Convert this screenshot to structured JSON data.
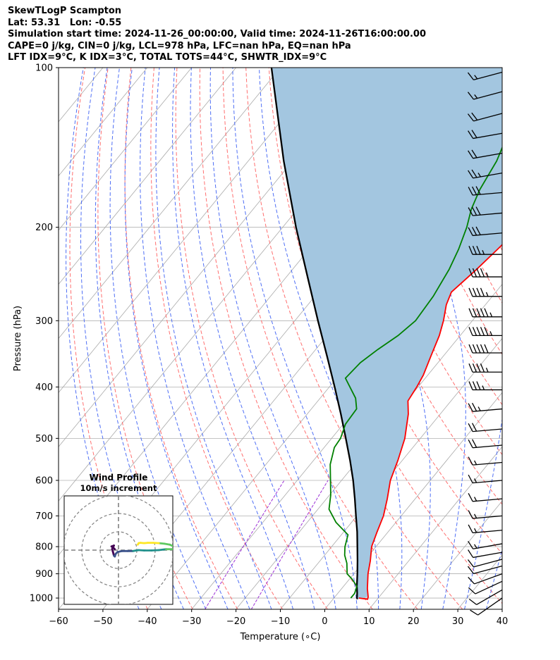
{
  "header": {
    "lines": [
      "SkewTLogP Scampton",
      "Lat: 53.31   Lon: -0.55",
      "Simulation start time: 2024-11-26_00:00:00, Valid time: 2024-11-26T16:00:00.00",
      "CAPE=0 j/kg, CIN=0 j/kg, LCL=978 hPa, LFC=nan hPa, EQ=nan hPa",
      "LFT IDX=9°C, K IDX=3°C, TOTAL TOTS=44°C, SHWTR_IDX=9°C"
    ]
  },
  "chart_data": {
    "type": "line",
    "subtype": "skew-t log-p",
    "xlabel": "Temperature (∘C)",
    "ylabel": "Pressure (hPa)",
    "xlim": [
      -60,
      40
    ],
    "ylim": [
      1050,
      100
    ],
    "y_scale": "log",
    "x_ticks": [
      -60,
      -50,
      -40,
      -30,
      -20,
      -10,
      0,
      10,
      20,
      30,
      40
    ],
    "x_tick_labels": [
      "−60",
      "−50",
      "−40",
      "−30",
      "−20",
      "−10",
      "0",
      "10",
      "20",
      "30",
      "40"
    ],
    "y_ticks": [
      1000,
      900,
      800,
      700,
      600,
      500,
      400,
      300,
      200,
      100
    ],
    "grid": true,
    "colors": {
      "temperature": "#ff0000",
      "dewpoint": "#008000",
      "parcel": "#000000",
      "cin_fill": "#a3c6e0",
      "dry_adiabat": "#ff6f6f",
      "moist_adiabat": "#4f6ff5",
      "mixing_ratio": "#9b30d6",
      "isotherm": "#aaaaaa"
    },
    "series": [
      {
        "key": "temperature",
        "points": [
          [
            1000,
            5.6
          ],
          [
            1005,
            7.8
          ],
          [
            995,
            7.5
          ],
          [
            960,
            5.8
          ],
          [
            900,
            3.2
          ],
          [
            850,
            1.3
          ],
          [
            800,
            -1.0
          ],
          [
            750,
            -2.5
          ],
          [
            700,
            -4.0
          ],
          [
            650,
            -6.3
          ],
          [
            600,
            -9.0
          ],
          [
            550,
            -11.0
          ],
          [
            500,
            -13.5
          ],
          [
            450,
            -17.2
          ],
          [
            425,
            -19.7
          ],
          [
            400,
            -20.3
          ],
          [
            380,
            -21.0
          ],
          [
            350,
            -22.8
          ],
          [
            320,
            -24.7
          ],
          [
            300,
            -26.5
          ],
          [
            280,
            -28.8
          ],
          [
            265,
            -30.0
          ],
          [
            240,
            -28.5
          ],
          [
            220,
            -27.5
          ],
          [
            200,
            -26.5
          ],
          [
            180,
            -28.5
          ],
          [
            165,
            -31.5
          ],
          [
            150,
            -36.5
          ],
          [
            140,
            -39.0
          ],
          [
            130,
            -42.0
          ],
          [
            120,
            -46.5
          ],
          [
            110,
            -51.5
          ],
          [
            100,
            -57.0
          ]
        ]
      },
      {
        "key": "dewpoint",
        "points": [
          [
            1000,
            3.8
          ],
          [
            980,
            3.8
          ],
          [
            950,
            3.0
          ],
          [
            920,
            0.5
          ],
          [
            900,
            -1.5
          ],
          [
            860,
            -3.5
          ],
          [
            830,
            -5.5
          ],
          [
            800,
            -7.0
          ],
          [
            760,
            -8.5
          ],
          [
            720,
            -13.5
          ],
          [
            680,
            -17.5
          ],
          [
            640,
            -19.7
          ],
          [
            600,
            -22.5
          ],
          [
            560,
            -25.5
          ],
          [
            520,
            -27.7
          ],
          [
            500,
            -28.0
          ],
          [
            470,
            -29.5
          ],
          [
            440,
            -29.8
          ],
          [
            420,
            -32.0
          ],
          [
            385,
            -38.0
          ],
          [
            360,
            -37.5
          ],
          [
            340,
            -36.0
          ],
          [
            320,
            -34.0
          ],
          [
            300,
            -32.8
          ],
          [
            270,
            -33.3
          ],
          [
            240,
            -34.7
          ],
          [
            220,
            -36.3
          ],
          [
            200,
            -38.5
          ],
          [
            185,
            -40.8
          ],
          [
            170,
            -42.5
          ],
          [
            150,
            -44.0
          ],
          [
            130,
            -47.0
          ],
          [
            110,
            -51.0
          ],
          [
            100,
            -53.5
          ]
        ]
      },
      {
        "key": "parcel",
        "points": [
          [
            1005,
            5.5
          ],
          [
            1000,
            5.2
          ],
          [
            978,
            4.3
          ],
          [
            950,
            3.0
          ],
          [
            900,
            0.8
          ],
          [
            850,
            -1.6
          ],
          [
            800,
            -4.2
          ],
          [
            750,
            -7.0
          ],
          [
            700,
            -10.2
          ],
          [
            650,
            -13.6
          ],
          [
            600,
            -17.4
          ],
          [
            550,
            -21.8
          ],
          [
            500,
            -26.8
          ],
          [
            450,
            -32.4
          ],
          [
            400,
            -38.8
          ],
          [
            350,
            -46.2
          ],
          [
            300,
            -54.8
          ],
          [
            250,
            -64.8
          ],
          [
            200,
            -77.0
          ],
          [
            150,
            -92.0
          ],
          [
            100,
            -112.0
          ]
        ]
      }
    ],
    "wind_barbs": {
      "pressures": [
        1000,
        965,
        930,
        900,
        870,
        845,
        820,
        790,
        745,
        700,
        650,
        600,
        555,
        515,
        480,
        440,
        405,
        375,
        345,
        320,
        295,
        270,
        248,
        225,
        205,
        188,
        172,
        158,
        145,
        133,
        122,
        111,
        102
      ],
      "speeds_kt": [
        10,
        10,
        10,
        10,
        10,
        10,
        10,
        15,
        15,
        15,
        15,
        15,
        15,
        20,
        20,
        25,
        35,
        45,
        50,
        55,
        55,
        45,
        45,
        35,
        30,
        30,
        30,
        25,
        20,
        20,
        20,
        15,
        15
      ],
      "directions_deg": [
        235,
        240,
        245,
        250,
        255,
        255,
        260,
        260,
        265,
        265,
        265,
        265,
        265,
        265,
        265,
        265,
        270,
        270,
        270,
        270,
        270,
        270,
        270,
        270,
        265,
        265,
        265,
        260,
        260,
        260,
        255,
        255,
        255
      ]
    },
    "inset": {
      "title": "Wind Profile",
      "subtitle": "10m/s increment",
      "rings_ms": [
        10,
        20,
        30
      ],
      "hodograph_uv": [
        [
          -2.0,
          0.5
        ],
        [
          -3.0,
          1.5
        ],
        [
          -3.8,
          2.0
        ],
        [
          -2.5,
          2.5
        ],
        [
          -3.5,
          0.5
        ],
        [
          -3.0,
          -1.0
        ],
        [
          -2.5,
          -3.0
        ],
        [
          -2.0,
          -3.5
        ],
        [
          -1.5,
          -2.0
        ],
        [
          -0.5,
          -1.0
        ],
        [
          2.0,
          -0.5
        ],
        [
          5.0,
          -0.5
        ],
        [
          8.0,
          -0.5
        ],
        [
          11.0,
          0.0
        ],
        [
          14.0,
          -0.2
        ],
        [
          18.0,
          -0.2
        ],
        [
          22.0,
          0.0
        ],
        [
          26.0,
          0.5
        ],
        [
          29.0,
          0.5
        ],
        [
          31.0,
          0.8
        ],
        [
          30.0,
          2.0
        ],
        [
          28.0,
          3.0
        ],
        [
          25.0,
          3.5
        ],
        [
          22.0,
          3.8
        ],
        [
          19.0,
          4.0
        ],
        [
          16.0,
          4.0
        ],
        [
          14.0,
          3.8
        ],
        [
          12.0,
          4.0
        ],
        [
          11.0,
          3.8
        ],
        [
          10.5,
          3.0
        ]
      ],
      "colormap": [
        "#440154",
        "#3b528b",
        "#21918c",
        "#5ec962",
        "#fde725"
      ]
    }
  }
}
